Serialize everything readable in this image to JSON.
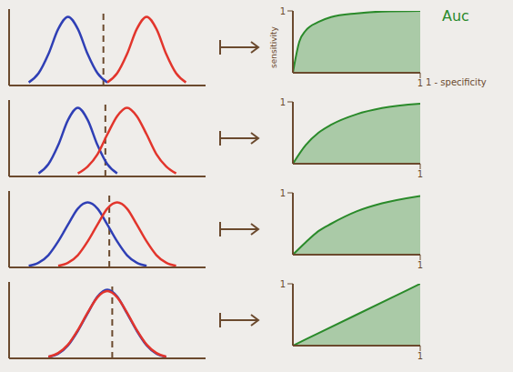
{
  "chart_data": [
    {
      "type": "line",
      "xlim": [
        0,
        10
      ],
      "ylim": [
        0,
        1
      ],
      "tick_labels": false,
      "threshold": 4.8,
      "x": [
        0,
        0.5,
        1,
        1.5,
        2,
        2.5,
        3,
        3.5,
        4,
        4.5,
        5,
        5.5,
        6,
        6.5,
        7,
        7.5,
        8,
        8.5,
        9,
        9.5,
        10
      ],
      "series": [
        {
          "color": "#2f3fb5",
          "values": [
            null,
            null,
            0.04,
            0.16,
            0.41,
            0.74,
            0.9,
            0.74,
            0.41,
            0.16,
            0.04,
            null,
            null,
            null,
            null,
            null,
            null,
            null,
            null,
            null,
            null
          ]
        },
        {
          "color": "#e2352c",
          "values": [
            null,
            null,
            null,
            null,
            null,
            null,
            null,
            null,
            null,
            null,
            0.04,
            0.16,
            0.41,
            0.74,
            0.9,
            0.74,
            0.41,
            0.16,
            0.04,
            null,
            null
          ]
        }
      ]
    },
    {
      "type": "area",
      "xlim": [
        0,
        1
      ],
      "ylim": [
        0,
        1
      ],
      "xticks": [
        1
      ],
      "yticks": [
        1
      ],
      "color": "#2a8a2a",
      "x_label": "1 - specificity",
      "y_label": "sensitivity",
      "annotation": "Auc",
      "x": [
        0,
        0.05,
        0.1,
        0.2,
        0.3,
        0.5,
        0.7,
        1
      ],
      "values": [
        0,
        0.5,
        0.68,
        0.82,
        0.9,
        0.96,
        0.99,
        1
      ]
    },
    {
      "type": "line",
      "xlim": [
        0,
        10
      ],
      "ylim": [
        0,
        1
      ],
      "tick_labels": false,
      "threshold": 4.9,
      "x": [
        0,
        0.5,
        1,
        1.5,
        2,
        2.5,
        3,
        3.5,
        4,
        4.5,
        5,
        5.5,
        6,
        6.5,
        7,
        7.5,
        8,
        8.5,
        9,
        9.5,
        10
      ],
      "series": [
        {
          "color": "#2f3fb5",
          "values": [
            null,
            null,
            null,
            0.04,
            0.16,
            0.41,
            0.74,
            0.9,
            0.74,
            0.41,
            0.16,
            0.04,
            null,
            null,
            null,
            null,
            null,
            null,
            null,
            null,
            null
          ]
        },
        {
          "color": "#e2352c",
          "values": [
            null,
            null,
            null,
            null,
            null,
            null,
            null,
            0.04,
            0.13,
            0.29,
            0.55,
            0.79,
            0.9,
            0.79,
            0.55,
            0.29,
            0.13,
            0.04,
            null,
            null,
            null
          ]
        }
      ]
    },
    {
      "type": "area",
      "xlim": [
        0,
        1
      ],
      "ylim": [
        0,
        1
      ],
      "xticks": [
        1
      ],
      "yticks": [
        1
      ],
      "color": "#2a8a2a",
      "x": [
        0,
        0.1,
        0.2,
        0.3,
        0.5,
        0.7,
        1
      ],
      "values": [
        0,
        0.3,
        0.5,
        0.63,
        0.8,
        0.9,
        0.97
      ]
    },
    {
      "type": "line",
      "xlim": [
        0,
        10
      ],
      "ylim": [
        0,
        1
      ],
      "tick_labels": false,
      "threshold": 5.1,
      "x": [
        0,
        0.5,
        1,
        1.5,
        2,
        2.5,
        3,
        3.5,
        4,
        4.5,
        5,
        5.5,
        6,
        6.5,
        7,
        7.5,
        8,
        8.5,
        9,
        9.5,
        10
      ],
      "series": [
        {
          "color": "#2f3fb5",
          "values": [
            null,
            null,
            0.02,
            0.06,
            0.16,
            0.34,
            0.56,
            0.77,
            0.85,
            0.77,
            0.56,
            0.34,
            0.16,
            0.06,
            0.02,
            null,
            null,
            null,
            null,
            null,
            null
          ]
        },
        {
          "color": "#e2352c",
          "values": [
            null,
            null,
            null,
            null,
            null,
            0.02,
            0.06,
            0.16,
            0.34,
            0.56,
            0.77,
            0.85,
            0.77,
            0.56,
            0.34,
            0.16,
            0.06,
            0.02,
            null,
            null,
            null
          ]
        }
      ]
    },
    {
      "type": "area",
      "xlim": [
        0,
        1
      ],
      "ylim": [
        0,
        1
      ],
      "xticks": [
        1
      ],
      "yticks": [
        1
      ],
      "color": "#2a8a2a",
      "x": [
        0,
        0.1,
        0.2,
        0.3,
        0.5,
        0.7,
        1
      ],
      "values": [
        0,
        0.2,
        0.38,
        0.5,
        0.7,
        0.83,
        0.95
      ]
    },
    {
      "type": "line",
      "xlim": [
        0,
        10
      ],
      "ylim": [
        0,
        1
      ],
      "tick_labels": false,
      "threshold": 5.25,
      "x": [
        0,
        0.5,
        1,
        1.5,
        2,
        2.5,
        3,
        3.5,
        4,
        4.5,
        5,
        5.5,
        6,
        6.5,
        7,
        7.5,
        8,
        8.5,
        9,
        9.5,
        10
      ],
      "series": [
        {
          "color": "#2f3fb5",
          "values": [
            null,
            null,
            null,
            null,
            0.02,
            0.06,
            0.17,
            0.36,
            0.59,
            0.81,
            0.9,
            0.81,
            0.59,
            0.36,
            0.17,
            0.06,
            0.02,
            null,
            null,
            null,
            null
          ]
        },
        {
          "color": "#e2352c",
          "values": [
            null,
            null,
            null,
            null,
            0.02,
            0.07,
            0.18,
            0.37,
            0.6,
            0.8,
            0.88,
            0.8,
            0.6,
            0.37,
            0.18,
            0.07,
            0.02,
            null,
            null,
            null,
            null
          ]
        }
      ]
    },
    {
      "type": "area",
      "xlim": [
        0,
        1
      ],
      "ylim": [
        0,
        1
      ],
      "xticks": [
        1
      ],
      "yticks": [
        1
      ],
      "color": "#2a8a2a",
      "x": [
        0,
        0.2,
        0.5,
        0.8,
        1
      ],
      "values": [
        0,
        0.2,
        0.5,
        0.8,
        1
      ]
    }
  ]
}
